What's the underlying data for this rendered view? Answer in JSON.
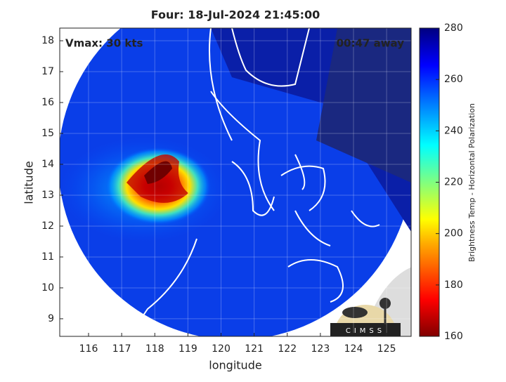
{
  "chart_data": {
    "type": "heatmap",
    "title": "Four: 18-Jul-2024 21:45:00",
    "annotations": [
      "Vmax: 30 kts",
      "00:47 away"
    ],
    "xlabel": "longitude",
    "ylabel": "latitude",
    "xlim": [
      115.13,
      125.74
    ],
    "ylim": [
      8.43,
      18.41
    ],
    "xticks": [
      116,
      117,
      118,
      119,
      120,
      121,
      122,
      123,
      124,
      125
    ],
    "yticks": [
      9,
      10,
      11,
      12,
      13,
      14,
      15,
      16,
      17,
      18
    ],
    "grid": true,
    "colorbar": {
      "label": "Brightness Temp - Horizontal Polarization",
      "lim": [
        160,
        280
      ],
      "ticks": [
        160,
        180,
        200,
        220,
        240,
        260,
        280
      ]
    },
    "logo": "CIMSS"
  }
}
